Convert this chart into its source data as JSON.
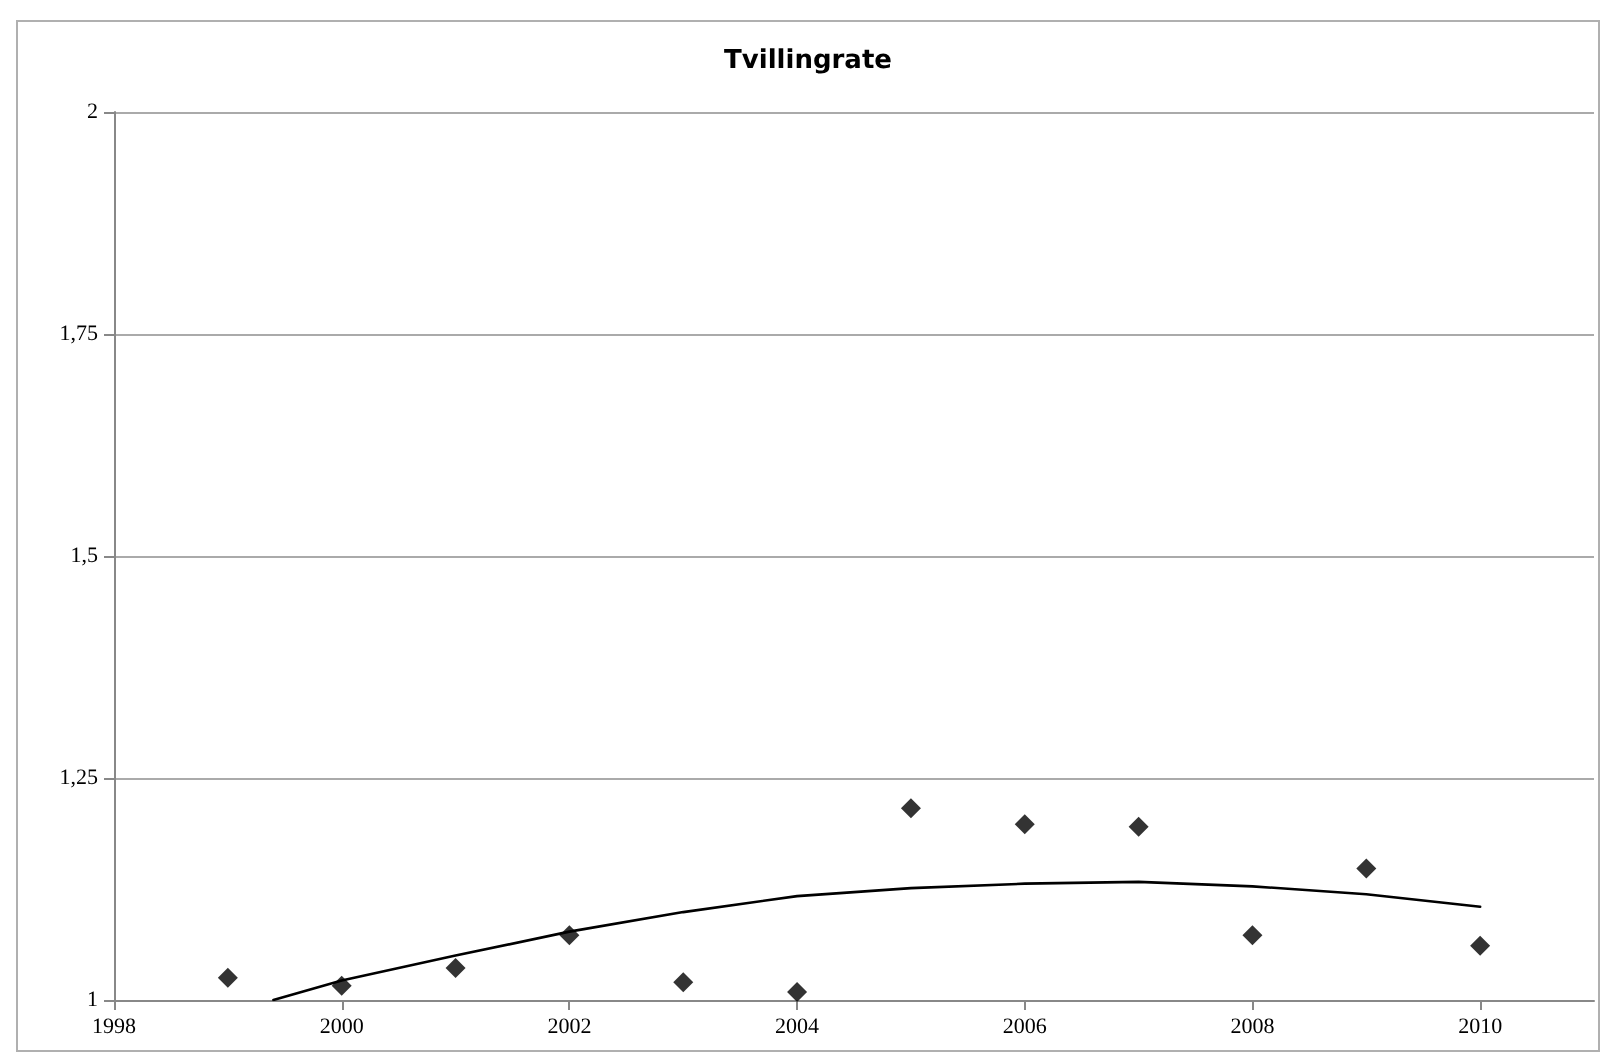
{
  "chart_data": {
    "type": "scatter",
    "title": "Tvillingrate",
    "x": [
      1999,
      2000,
      2001,
      2002,
      2003,
      2004,
      2005,
      2006,
      2007,
      2008,
      2009,
      2010
    ],
    "series": [
      {
        "color": "#000000",
        "marker": "diamond",
        "values": [
          1.025,
          1.016,
          1.036,
          1.073,
          1.02,
          1.009,
          1.216,
          1.198,
          1.195,
          1.073,
          1.148,
          1.061
        ]
      },
      {
        "type": "line",
        "color": "#000000",
        "marker": "none",
        "line_style": "solid",
        "x": [
          1999.4,
          2000,
          2001,
          2002,
          2003,
          2004,
          2005,
          2006,
          2007,
          2008,
          2009,
          2010
        ],
        "values": [
          1.0,
          1.022,
          1.05,
          1.077,
          1.099,
          1.117,
          1.126,
          1.131,
          1.133,
          1.128,
          1.119,
          1.105
        ]
      }
    ],
    "xlim": [
      1998,
      2011
    ],
    "xticks": [
      1998,
      2000,
      2002,
      2004,
      2006,
      2008,
      2010
    ],
    "ylim": [
      1,
      2
    ],
    "yticks": [
      1,
      {
        "value": 1.25,
        "label": "1,25"
      },
      {
        "value": 1.5,
        "label": "1,5"
      },
      {
        "value": 1.75,
        "label": "1,75"
      },
      2
    ],
    "grid": "y"
  }
}
